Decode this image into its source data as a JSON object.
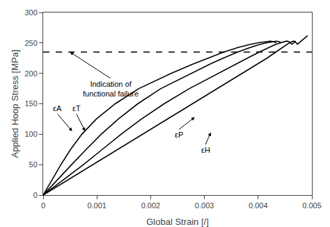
{
  "chart_data": {
    "type": "line",
    "xlabel": "Global Strain [/]",
    "ylabel": "Applied Hoop Stress [MPa]",
    "xlim": [
      0,
      0.005
    ],
    "ylim": [
      0,
      300
    ],
    "xticks": [
      0,
      0.001,
      0.002,
      0.003,
      0.004,
      0.005
    ],
    "yticks": [
      0,
      50,
      100,
      150,
      200,
      250,
      300
    ],
    "grid": false,
    "series": [
      {
        "color": "#000000",
        "x": [
          0,
          0.000463,
          0.000925,
          0.001388,
          0.00185,
          0.002313,
          0.002775,
          0.003238,
          0.0037,
          0.00398,
          0.004165,
          0.004328,
          0.00444,
          0.004515,
          0.004578,
          0.004628,
          0.00466,
          0.004688,
          0.00471,
          0.00473,
          0.00476,
          0.0048,
          0.00486,
          0.00492
        ],
        "values": [
          0,
          25,
          50,
          75,
          100,
          125,
          150,
          175,
          200,
          215,
          225,
          235,
          242,
          247,
          250,
          252,
          253,
          252,
          250,
          248,
          250,
          253,
          258,
          262
        ]
      },
      {
        "color": "#000000",
        "x": [
          0,
          0.000375,
          0.00075,
          0.0011,
          0.00145,
          0.00183,
          0.00225,
          0.00272,
          0.00325,
          0.00358,
          0.0038,
          0.00402,
          0.00418,
          0.00431,
          0.00441,
          0.00449,
          0.004535,
          0.00457,
          0.0046,
          0.004625,
          0.00466,
          0.0047
        ],
        "values": [
          0,
          25,
          50,
          75,
          100,
          125,
          150,
          175,
          200,
          215,
          225,
          235,
          242,
          247,
          250,
          252,
          253,
          252,
          250,
          248,
          250,
          253
        ]
      },
      {
        "color": "#000000",
        "x": [
          0,
          0.00026,
          0.00053,
          0.0008,
          0.00108,
          0.0014,
          0.00176,
          0.00219,
          0.00275,
          0.0031,
          0.00335,
          0.00362,
          0.00384,
          0.00401,
          0.00415,
          0.00427,
          0.00434,
          0.00439,
          0.00443
        ],
        "values": [
          0,
          25,
          50,
          75,
          100,
          125,
          150,
          175,
          200,
          215,
          225,
          235,
          242,
          247,
          250,
          252,
          253,
          252,
          250
        ]
      },
      {
        "color": "#000000",
        "x": [
          0,
          0.00016,
          0.00033,
          0.00051,
          0.00072,
          0.00099,
          0.00134,
          0.00178,
          0.00238,
          0.00278,
          0.00306,
          0.00336,
          0.00361,
          0.00382,
          0.00399,
          0.00413,
          0.00422,
          0.00429,
          0.00434
        ],
        "values": [
          0,
          25,
          50,
          75,
          100,
          125,
          150,
          175,
          200,
          215,
          225,
          235,
          242,
          247,
          250,
          252,
          253,
          252,
          250
        ]
      }
    ],
    "reference_lines": [
      {
        "y": 235,
        "color": "#000000",
        "line_style": "dashed"
      }
    ],
    "annotations": [
      {
        "text": "Indication of\nfunctional failure",
        "x": 0.0005,
        "y": 235,
        "text_x": 0.00125,
        "text_y": 192
      },
      {
        "text": "εA",
        "x": 0.00054,
        "y": 105,
        "text_x": 0.00027,
        "text_y": 133
      },
      {
        "text": "εT",
        "x": 0.00078,
        "y": 105,
        "text_x": 0.00062,
        "text_y": 133
      },
      {
        "text": "εP",
        "x": 0.00282,
        "y": 128,
        "text_x": 0.00253,
        "text_y": 108
      },
      {
        "text": "εH",
        "x": 0.00312,
        "y": 103,
        "text_x": 0.00302,
        "text_y": 83
      }
    ]
  }
}
